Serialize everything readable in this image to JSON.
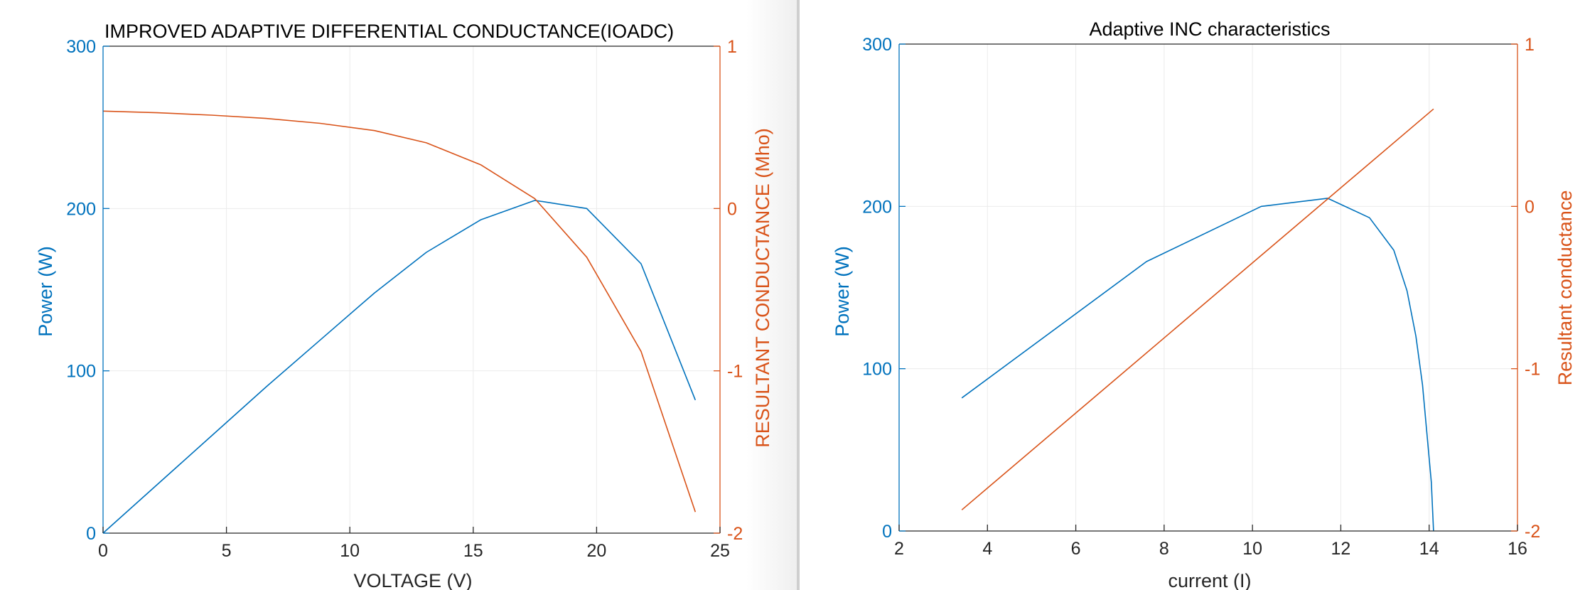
{
  "colors": {
    "left_axis": "#0072BD",
    "right_axis": "#D95319",
    "grid": "#ebebeb",
    "axis_dark": "#262626"
  },
  "chart_data": [
    {
      "type": "line",
      "title": "IMPROVED ADAPTIVE DIFFERENTIAL CONDUCTANCE(IOADC)",
      "xlabel": "VOLTAGE (V)",
      "ylabel_left": "Power (W)",
      "ylabel_right": "RESULTANT CONDUCTANCE (Mho)",
      "xlim": [
        0,
        25
      ],
      "ylim_left": [
        0,
        300
      ],
      "ylim_right": [
        -2,
        1
      ],
      "x_ticks": [
        0,
        5,
        10,
        15,
        20,
        25
      ],
      "y_ticks_left": [
        0,
        100,
        200,
        300
      ],
      "y_ticks_right": [
        -2,
        -1,
        0,
        1
      ],
      "grid": true,
      "series": [
        {
          "name": "Power",
          "axis": "left",
          "color": "#0072BD",
          "x": [
            0,
            2.2,
            4.4,
            6.6,
            8.8,
            11.0,
            13.1,
            15.3,
            17.5,
            19.6,
            21.8,
            24.0
          ],
          "y": [
            0,
            30,
            60,
            90,
            119,
            148,
            173,
            193,
            205,
            200,
            166,
            82
          ]
        },
        {
          "name": "Resultant conductance",
          "axis": "right",
          "color": "#D95319",
          "x": [
            0,
            2.2,
            4.4,
            6.6,
            8.8,
            11.0,
            13.1,
            15.3,
            17.5,
            19.6,
            21.8,
            24.0
          ],
          "y": [
            0.6,
            0.59,
            0.575,
            0.555,
            0.525,
            0.48,
            0.405,
            0.27,
            0.06,
            -0.3,
            -0.88,
            -1.87
          ]
        }
      ]
    },
    {
      "type": "line",
      "title": "Adaptive INC characteristics",
      "xlabel": "current (I)",
      "ylabel_left": "Power (W)",
      "ylabel_right": "Resultant conductance",
      "xlim": [
        2,
        16
      ],
      "ylim_left": [
        0,
        300
      ],
      "ylim_right": [
        -2,
        1
      ],
      "x_ticks": [
        2,
        4,
        6,
        8,
        10,
        12,
        14,
        16
      ],
      "y_ticks_left": [
        0,
        100,
        200,
        300
      ],
      "y_ticks_right": [
        -2,
        -1,
        0,
        1
      ],
      "grid": true,
      "series": [
        {
          "name": "Power",
          "axis": "left",
          "color": "#0072BD",
          "x": [
            3.42,
            7.6,
            10.2,
            11.7,
            12.65,
            13.2,
            13.5,
            13.7,
            13.85,
            13.95,
            14.05,
            14.1
          ],
          "y": [
            82,
            166,
            200,
            205,
            193,
            173,
            148,
            120,
            90,
            60,
            30,
            0
          ]
        },
        {
          "name": "Resultant conductance",
          "axis": "right",
          "color": "#D95319",
          "x": [
            3.42,
            14.1
          ],
          "y": [
            -1.87,
            0.6
          ]
        }
      ]
    }
  ]
}
